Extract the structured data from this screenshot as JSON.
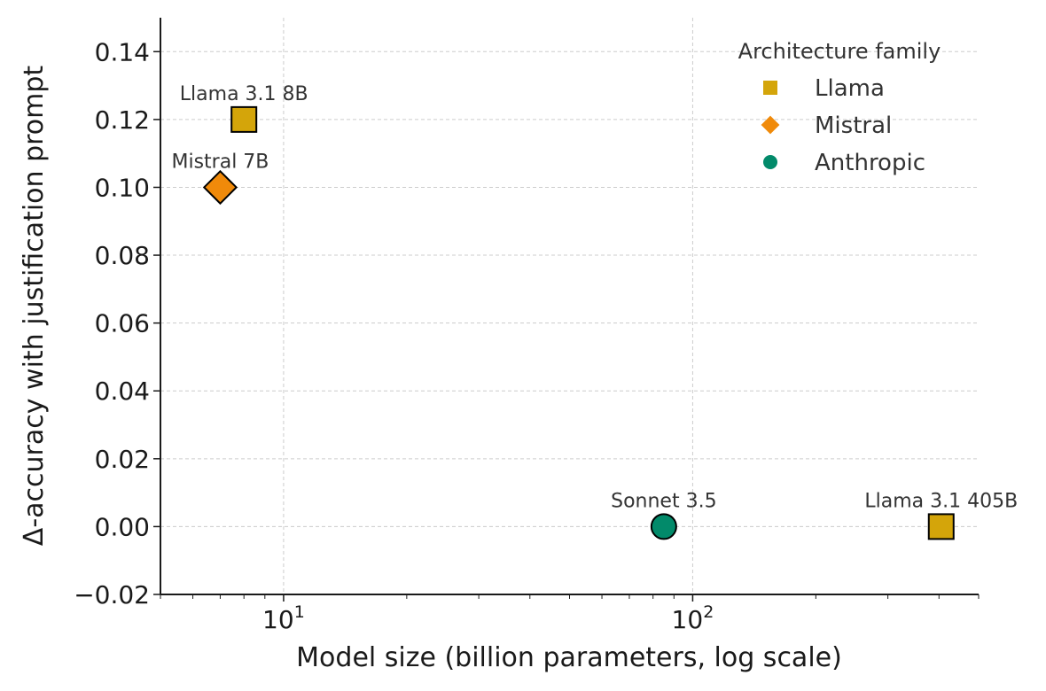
{
  "chart_data": {
    "type": "scatter",
    "title": "",
    "xlabel": "Model size (billion parameters, log scale)",
    "ylabel": "Δ-accuracy with justification prompt",
    "xscale": "log",
    "xlim": [
      5,
      500
    ],
    "ylim": [
      -0.02,
      0.15
    ],
    "grid": true,
    "y_ticks": [
      -0.02,
      0.0,
      0.02,
      0.04,
      0.06,
      0.08,
      0.1,
      0.12,
      0.14
    ],
    "y_tick_labels": [
      "−0.02",
      "0.00",
      "0.02",
      "0.04",
      "0.06",
      "0.08",
      "0.10",
      "0.12",
      "0.14"
    ],
    "x_major_ticks": [
      10,
      100
    ],
    "x_tick_labels": [
      {
        "base": "10",
        "exp": "1"
      },
      {
        "base": "10",
        "exp": "2"
      }
    ],
    "points": [
      {
        "label": "Llama 3.1 8B",
        "family": "Llama",
        "x": 8,
        "y": 0.12
      },
      {
        "label": "Mistral 7B",
        "family": "Mistral",
        "x": 7,
        "y": 0.1
      },
      {
        "label": "Sonnet 3.5",
        "family": "Anthropic",
        "x": 85,
        "y": 0.0
      },
      {
        "label": "Llama 3.1 405B",
        "family": "Llama",
        "x": 405,
        "y": 0.0
      }
    ],
    "legend": {
      "title": "Architecture family",
      "position": "top-right",
      "entries": [
        {
          "name": "Llama",
          "marker": "square",
          "color": "#D4A50A"
        },
        {
          "name": "Mistral",
          "marker": "diamond",
          "color": "#F08A0A"
        },
        {
          "name": "Anthropic",
          "marker": "circle",
          "color": "#028A6A"
        }
      ]
    },
    "colors": {
      "Llama": "#D4A50A",
      "Mistral": "#F08A0A",
      "Anthropic": "#028A6A"
    }
  }
}
